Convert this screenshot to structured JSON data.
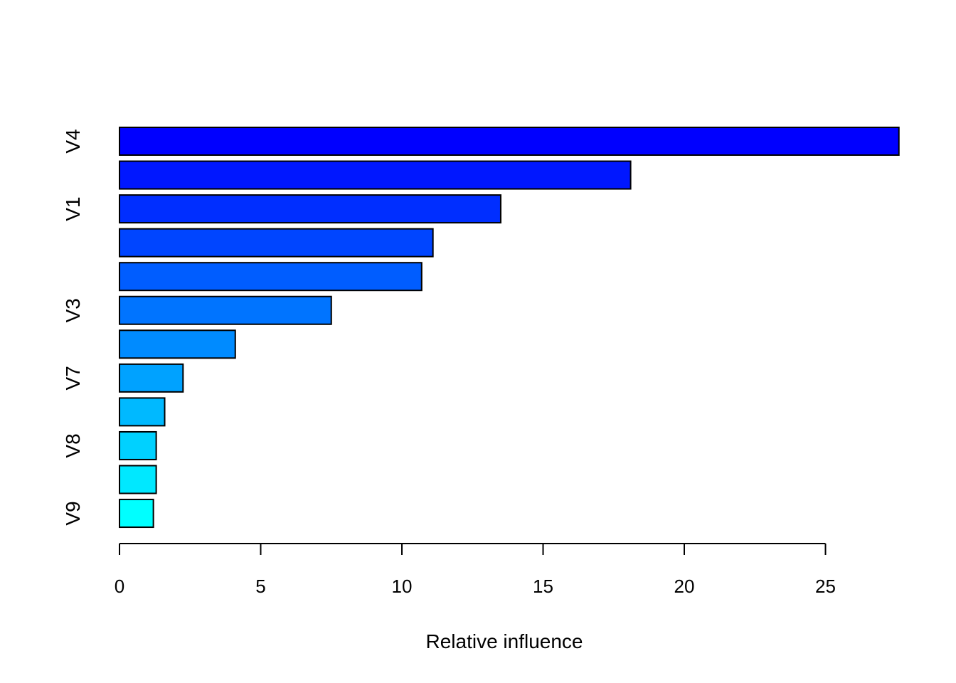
{
  "chart_data": {
    "type": "bar",
    "orientation": "horizontal",
    "xlabel": "Relative influence",
    "xlim": [
      0,
      27.6
    ],
    "xticks": [
      0,
      5,
      10,
      15,
      20,
      25
    ],
    "xtick_labels": [
      "0",
      "5",
      "10",
      "15",
      "20",
      "25"
    ],
    "grid": false,
    "bars": [
      {
        "label": "V4",
        "value": 27.6,
        "color": "#0000FF"
      },
      {
        "label": "",
        "value": 18.1,
        "color": "#0017FF"
      },
      {
        "label": "V1",
        "value": 13.5,
        "color": "#002EFF"
      },
      {
        "label": "",
        "value": 11.1,
        "color": "#0045FF"
      },
      {
        "label": "",
        "value": 10.7,
        "color": "#005DFF"
      },
      {
        "label": "V3",
        "value": 7.5,
        "color": "#0074FF"
      },
      {
        "label": "",
        "value": 4.1,
        "color": "#008BFF"
      },
      {
        "label": "V7",
        "value": 2.25,
        "color": "#00A2FF"
      },
      {
        "label": "",
        "value": 1.6,
        "color": "#00B9FF"
      },
      {
        "label": "V8",
        "value": 1.3,
        "color": "#00D1FF"
      },
      {
        "label": "",
        "value": 1.3,
        "color": "#00E8FF"
      },
      {
        "label": "V9",
        "value": 1.2,
        "color": "#00FFFF"
      }
    ]
  }
}
